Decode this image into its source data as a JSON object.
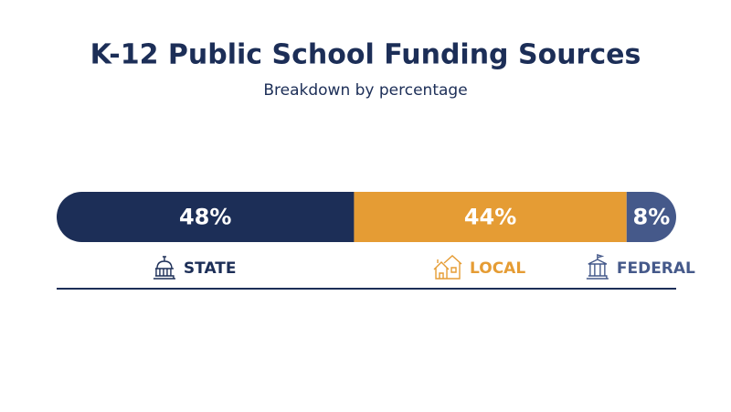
{
  "chart_data": {
    "type": "stacked-bar",
    "title": "K-12 Public School Funding Sources",
    "subtitle": "Breakdown by percentage",
    "series": [
      {
        "name": "STATE",
        "color": "#1c2e57",
        "values": [
          48
        ],
        "value_labels": [
          "48%"
        ]
      },
      {
        "name": "LOCAL",
        "color": "#e59c34",
        "values": [
          44
        ],
        "value_labels": [
          "44%"
        ]
      },
      {
        "name": "FEDERAL",
        "color": "#45598a",
        "values": [
          8
        ],
        "value_labels": [
          "8%"
        ]
      }
    ]
  }
}
